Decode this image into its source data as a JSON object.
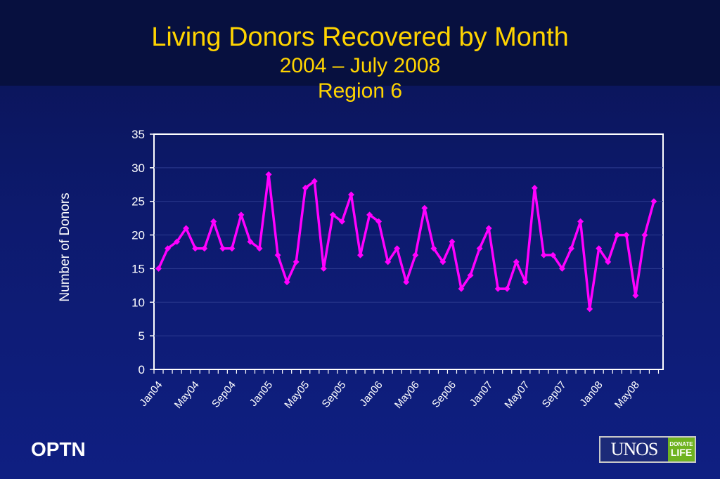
{
  "header": {
    "title": "Living Donors Recovered by Month",
    "subtitle_line1": "2004 – July 2008",
    "subtitle_line2": "Region 6"
  },
  "footer": {
    "org_label": "OPTN",
    "logo_text": "UNOS",
    "logo_badge_line1": "DONATE",
    "logo_badge_line2": "LIFE"
  },
  "colors": {
    "background": "#0d1a6e",
    "title": "#ffd400",
    "series": "#ff00ff",
    "plot_border": "#ffffff"
  },
  "chart_data": {
    "type": "line",
    "title": "Living Donors Recovered by Month",
    "ylabel": "Number of Donors",
    "xlabel": "",
    "ylim": [
      0,
      35
    ],
    "yticks": [
      0,
      5,
      10,
      15,
      20,
      25,
      30,
      35
    ],
    "grid": true,
    "legend": "none",
    "x_tick_labels": [
      "Jan04",
      "May04",
      "Sep04",
      "Jan05",
      "May05",
      "Sep05",
      "Jan06",
      "May06",
      "Sep06",
      "Jan07",
      "May07",
      "Sep07",
      "Jan08",
      "May08"
    ],
    "x_tick_positions": [
      "Jan04",
      "May04",
      "Sep04",
      "Jan05",
      "May05",
      "Sep05",
      "Jan06",
      "May06",
      "Sep06",
      "Jan07",
      "May07",
      "Sep07",
      "Jan08",
      "May08"
    ],
    "categories": [
      "Jan04",
      "Feb04",
      "Mar04",
      "Apr04",
      "May04",
      "Jun04",
      "Jul04",
      "Aug04",
      "Sep04",
      "Oct04",
      "Nov04",
      "Dec04",
      "Jan05",
      "Feb05",
      "Mar05",
      "Apr05",
      "May05",
      "Jun05",
      "Jul05",
      "Aug05",
      "Sep05",
      "Oct05",
      "Nov05",
      "Dec05",
      "Jan06",
      "Feb06",
      "Mar06",
      "Apr06",
      "May06",
      "Jun06",
      "Jul06",
      "Aug06",
      "Sep06",
      "Oct06",
      "Nov06",
      "Dec06",
      "Jan07",
      "Feb07",
      "Mar07",
      "Apr07",
      "May07",
      "Jun07",
      "Jul07",
      "Aug07",
      "Sep07",
      "Oct07",
      "Nov07",
      "Dec07",
      "Jan08",
      "Feb08",
      "Mar08",
      "Apr08",
      "May08",
      "Jun08",
      "Jul08"
    ],
    "series": [
      {
        "values": [
          15,
          18,
          19,
          21,
          18,
          18,
          22,
          18,
          18,
          23,
          19,
          18,
          29,
          17,
          13,
          16,
          27,
          28,
          15,
          23,
          22,
          26,
          17,
          23,
          22,
          16,
          18,
          13,
          17,
          24,
          18,
          16,
          19,
          12,
          14,
          18,
          21,
          12,
          12,
          16,
          13,
          27,
          17,
          17,
          15,
          18,
          22,
          9,
          18,
          16,
          20,
          20,
          11,
          20,
          25
        ]
      }
    ]
  }
}
